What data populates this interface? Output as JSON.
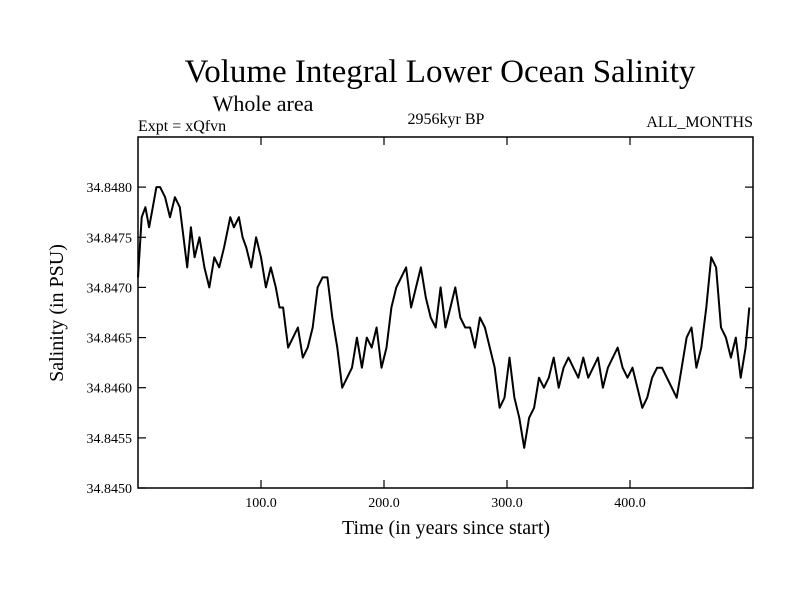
{
  "chart_data": {
    "type": "line",
    "title": "Volume Integral Lower Ocean Salinity",
    "subtitle": "Whole area",
    "experiment_label": "Expt = xQfvn",
    "period_label": "2956kyr BP",
    "months_label": "ALL_MONTHS",
    "xlabel": "Time (in years since start)",
    "ylabel": "Salinity (in PSU)",
    "xlim": [
      0,
      500
    ],
    "ylim": [
      34.845,
      34.8485
    ],
    "x_ticks": [
      100,
      200,
      300,
      400
    ],
    "x_tick_labels": [
      "100.0",
      "200.0",
      "300.0",
      "400.0"
    ],
    "y_ticks": [
      34.845,
      34.8455,
      34.846,
      34.8465,
      34.847,
      34.8475,
      34.848
    ],
    "y_tick_labels": [
      "34.8450",
      "34.8455",
      "34.8460",
      "34.8465",
      "34.8470",
      "34.8475",
      "34.8480"
    ],
    "grid": false,
    "series": [
      {
        "name": "Salinity",
        "x": [
          0,
          3,
          6,
          9,
          12,
          15,
          18,
          22,
          26,
          30,
          34,
          37,
          40,
          43,
          46,
          50,
          54,
          58,
          62,
          66,
          70,
          75,
          78,
          82,
          85,
          88,
          92,
          96,
          100,
          104,
          108,
          112,
          115,
          118,
          122,
          126,
          130,
          134,
          138,
          142,
          146,
          150,
          154,
          158,
          162,
          166,
          170,
          174,
          178,
          182,
          186,
          190,
          194,
          198,
          202,
          206,
          210,
          214,
          218,
          222,
          226,
          230,
          234,
          238,
          242,
          246,
          250,
          254,
          258,
          262,
          266,
          270,
          274,
          278,
          282,
          286,
          290,
          294,
          298,
          302,
          306,
          310,
          314,
          318,
          322,
          326,
          330,
          334,
          338,
          342,
          346,
          350,
          354,
          358,
          362,
          366,
          370,
          374,
          378,
          382,
          386,
          390,
          394,
          398,
          402,
          406,
          410,
          414,
          418,
          422,
          426,
          430,
          434,
          438,
          442,
          446,
          450,
          454,
          458,
          462,
          466,
          470,
          474,
          478,
          482,
          486,
          490,
          494,
          497
        ],
        "values": [
          34.8471,
          34.8477,
          34.8478,
          34.8476,
          34.8478,
          34.848,
          34.848,
          34.8479,
          34.8477,
          34.8479,
          34.8478,
          34.8475,
          34.8472,
          34.8476,
          34.8473,
          34.8475,
          34.8472,
          34.847,
          34.8473,
          34.8472,
          34.8474,
          34.8477,
          34.8476,
          34.8477,
          34.8475,
          34.8474,
          34.8472,
          34.8475,
          34.8473,
          34.847,
          34.8472,
          34.847,
          34.8468,
          34.8468,
          34.8464,
          34.8465,
          34.8466,
          34.8463,
          34.8464,
          34.8466,
          34.847,
          34.8471,
          34.8471,
          34.8467,
          34.8464,
          34.846,
          34.8461,
          34.8462,
          34.8465,
          34.8462,
          34.8465,
          34.8464,
          34.8466,
          34.8462,
          34.8464,
          34.8468,
          34.847,
          34.8471,
          34.8472,
          34.8468,
          34.847,
          34.8472,
          34.8469,
          34.8467,
          34.8466,
          34.847,
          34.8466,
          34.8468,
          34.847,
          34.8467,
          34.8466,
          34.8466,
          34.8464,
          34.8467,
          34.8466,
          34.8464,
          34.8462,
          34.8458,
          34.8459,
          34.8463,
          34.8459,
          34.8457,
          34.8454,
          34.8457,
          34.8458,
          34.8461,
          34.846,
          34.8461,
          34.8463,
          34.846,
          34.8462,
          34.8463,
          34.8462,
          34.8461,
          34.8463,
          34.8461,
          34.8462,
          34.8463,
          34.846,
          34.8462,
          34.8463,
          34.8464,
          34.8462,
          34.8461,
          34.8462,
          34.846,
          34.8458,
          34.8459,
          34.8461,
          34.8462,
          34.8462,
          34.8461,
          34.846,
          34.8459,
          34.8462,
          34.8465,
          34.8466,
          34.8462,
          34.8464,
          34.8468,
          34.8473,
          34.8472,
          34.8466,
          34.8465,
          34.8463,
          34.8465,
          34.8461,
          34.8464,
          34.8468
        ]
      }
    ]
  }
}
